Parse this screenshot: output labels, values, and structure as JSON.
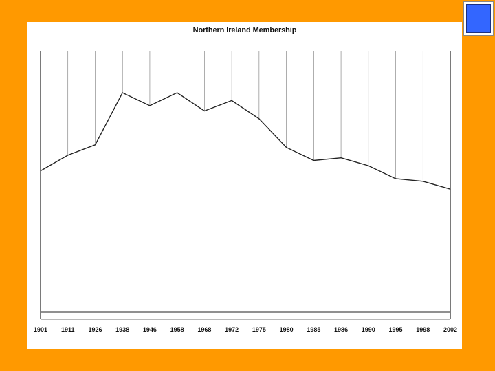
{
  "chart_data": {
    "type": "area",
    "title": "Northern Ireland Membership",
    "xlabel": "",
    "ylabel": "",
    "categories": [
      "1901",
      "1911",
      "1926",
      "1938",
      "1946",
      "1958",
      "1968",
      "1972",
      "1975",
      "1980",
      "1985",
      "1986",
      "1990",
      "1995",
      "1998",
      "2002"
    ],
    "series": [
      {
        "name": "Membership",
        "values": [
          55,
          61,
          65,
          85,
          80,
          85,
          78,
          82,
          75,
          64,
          59,
          60,
          57,
          52,
          51,
          48
        ]
      }
    ],
    "ylim": [
      0,
      100
    ],
    "grid": "vertical",
    "legend": "none"
  },
  "colors": {
    "background": "#FF9900",
    "card": "#FFFFFF",
    "nav_square": "#3366FF",
    "line": "#222222",
    "grid": "#666666"
  }
}
